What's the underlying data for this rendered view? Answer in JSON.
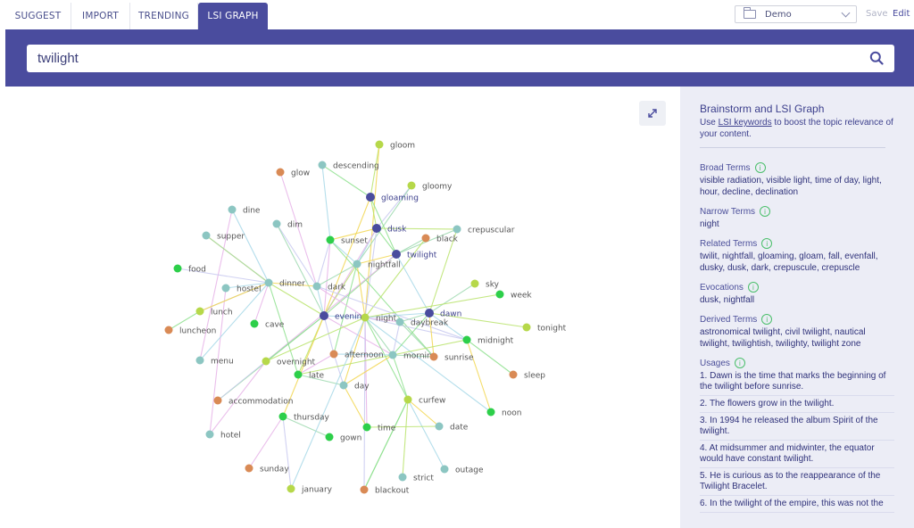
{
  "tabs": [
    {
      "label": "SUGGEST",
      "active": false
    },
    {
      "label": "IMPORT",
      "active": false
    },
    {
      "label": "TRENDING",
      "active": false
    },
    {
      "label": "LSI GRAPH",
      "active": true
    }
  ],
  "project_select": {
    "value": "Demo",
    "icon": "folder-icon"
  },
  "header_actions": {
    "save": "Save",
    "edit": "Edit"
  },
  "search": {
    "value": "twilight",
    "icon": "search-icon"
  },
  "colors": {
    "brand": "#4a4c9e",
    "node_dark": "#4a4c9e",
    "node_teal": "#8cc6c2",
    "node_green": "#2dcf4a",
    "node_lime": "#b6d84a",
    "node_orange": "#d98a55"
  },
  "graph": {
    "nodes": [
      {
        "id": "gloom",
        "label": "gloom",
        "color": "lime"
      },
      {
        "id": "descending",
        "label": "descending",
        "color": "teal"
      },
      {
        "id": "glow",
        "label": "glow",
        "color": "orange"
      },
      {
        "id": "gloomy",
        "label": "gloomy",
        "color": "lime"
      },
      {
        "id": "gloaming",
        "label": "gloaming",
        "color": "dark"
      },
      {
        "id": "dine",
        "label": "dine",
        "color": "teal"
      },
      {
        "id": "dim",
        "label": "dim",
        "color": "teal"
      },
      {
        "id": "dusk",
        "label": "dusk",
        "color": "dark"
      },
      {
        "id": "crepuscular",
        "label": "crepuscular",
        "color": "teal"
      },
      {
        "id": "supper",
        "label": "supper",
        "color": "teal"
      },
      {
        "id": "sunset",
        "label": "sunset",
        "color": "green"
      },
      {
        "id": "black",
        "label": "black",
        "color": "orange"
      },
      {
        "id": "twilight",
        "label": "twilight",
        "color": "dark"
      },
      {
        "id": "food",
        "label": "food",
        "color": "green"
      },
      {
        "id": "nightfall",
        "label": "nightfall",
        "color": "teal"
      },
      {
        "id": "hostel",
        "label": "hostel",
        "color": "teal"
      },
      {
        "id": "dinner",
        "label": "dinner",
        "color": "teal"
      },
      {
        "id": "dark",
        "label": "dark",
        "color": "teal"
      },
      {
        "id": "sky",
        "label": "sky",
        "color": "lime"
      },
      {
        "id": "week",
        "label": "week",
        "color": "green"
      },
      {
        "id": "lunch",
        "label": "lunch",
        "color": "lime"
      },
      {
        "id": "evening",
        "label": "evening",
        "color": "dark"
      },
      {
        "id": "night",
        "label": "night",
        "color": "lime"
      },
      {
        "id": "dawn",
        "label": "dawn",
        "color": "dark"
      },
      {
        "id": "cave",
        "label": "cave",
        "color": "green"
      },
      {
        "id": "daybreak",
        "label": "daybreak",
        "color": "teal"
      },
      {
        "id": "luncheon",
        "label": "luncheon",
        "color": "orange"
      },
      {
        "id": "tonight",
        "label": "tonight",
        "color": "lime"
      },
      {
        "id": "midnight",
        "label": "midnight",
        "color": "green"
      },
      {
        "id": "afternoon",
        "label": "afternoon",
        "color": "orange"
      },
      {
        "id": "morning",
        "label": "morning",
        "color": "teal"
      },
      {
        "id": "sunrise",
        "label": "sunrise",
        "color": "orange"
      },
      {
        "id": "menu",
        "label": "menu",
        "color": "teal"
      },
      {
        "id": "overnight",
        "label": "overnight",
        "color": "lime"
      },
      {
        "id": "late",
        "label": "late",
        "color": "green"
      },
      {
        "id": "sleep",
        "label": "sleep",
        "color": "orange"
      },
      {
        "id": "day",
        "label": "day",
        "color": "teal"
      },
      {
        "id": "accommodation",
        "label": "accommodation",
        "color": "orange"
      },
      {
        "id": "curfew",
        "label": "curfew",
        "color": "lime"
      },
      {
        "id": "thursday",
        "label": "thursday",
        "color": "green"
      },
      {
        "id": "noon",
        "label": "noon",
        "color": "green"
      },
      {
        "id": "time",
        "label": "time",
        "color": "green"
      },
      {
        "id": "date",
        "label": "date",
        "color": "teal"
      },
      {
        "id": "hotel",
        "label": "hotel",
        "color": "teal"
      },
      {
        "id": "gown",
        "label": "gown",
        "color": "green"
      },
      {
        "id": "sunday",
        "label": "sunday",
        "color": "orange"
      },
      {
        "id": "outage",
        "label": "outage",
        "color": "teal"
      },
      {
        "id": "strict",
        "label": "strict",
        "color": "teal"
      },
      {
        "id": "january",
        "label": "january",
        "color": "lime"
      },
      {
        "id": "blackout",
        "label": "blackout",
        "color": "orange"
      }
    ],
    "edges": [
      [
        "gloom",
        "gloaming"
      ],
      [
        "gloom",
        "night"
      ],
      [
        "descending",
        "gloaming"
      ],
      [
        "descending",
        "sunset"
      ],
      [
        "glow",
        "dark"
      ],
      [
        "gloomy",
        "dusk"
      ],
      [
        "gloomy",
        "nightfall"
      ],
      [
        "gloaming",
        "dusk"
      ],
      [
        "gloaming",
        "evening"
      ],
      [
        "gloaming",
        "twilight"
      ],
      [
        "dine",
        "dinner"
      ],
      [
        "dine",
        "menu"
      ],
      [
        "dim",
        "dark"
      ],
      [
        "dim",
        "evening"
      ],
      [
        "dusk",
        "crepuscular"
      ],
      [
        "dusk",
        "sunset"
      ],
      [
        "dusk",
        "twilight"
      ],
      [
        "dusk",
        "nightfall"
      ],
      [
        "dusk",
        "evening"
      ],
      [
        "dusk",
        "night"
      ],
      [
        "crepuscular",
        "twilight"
      ],
      [
        "crepuscular",
        "dawn"
      ],
      [
        "supper",
        "dinner"
      ],
      [
        "sunset",
        "sunrise"
      ],
      [
        "sunset",
        "nightfall"
      ],
      [
        "sunset",
        "evening"
      ],
      [
        "sunset",
        "dark"
      ],
      [
        "black",
        "twilight"
      ],
      [
        "black",
        "night"
      ],
      [
        "twilight",
        "nightfall"
      ],
      [
        "twilight",
        "evening"
      ],
      [
        "twilight",
        "dawn"
      ],
      [
        "twilight",
        "overnight"
      ],
      [
        "food",
        "dinner"
      ],
      [
        "nightfall",
        "dark"
      ],
      [
        "nightfall",
        "evening"
      ],
      [
        "nightfall",
        "night"
      ],
      [
        "nightfall",
        "afternoon"
      ],
      [
        "hostel",
        "dinner"
      ],
      [
        "hostel",
        "hotel"
      ],
      [
        "dinner",
        "lunch"
      ],
      [
        "dinner",
        "supper"
      ],
      [
        "dinner",
        "evening"
      ],
      [
        "dinner",
        "dark"
      ],
      [
        "dinner",
        "late"
      ],
      [
        "dark",
        "evening"
      ],
      [
        "dark",
        "night"
      ],
      [
        "dark",
        "midnight"
      ],
      [
        "sky",
        "dawn"
      ],
      [
        "week",
        "night"
      ],
      [
        "lunch",
        "dinner"
      ],
      [
        "lunch",
        "luncheon"
      ],
      [
        "evening",
        "night"
      ],
      [
        "evening",
        "morning"
      ],
      [
        "evening",
        "afternoon"
      ],
      [
        "evening",
        "overnight"
      ],
      [
        "evening",
        "late"
      ],
      [
        "evening",
        "thursday"
      ],
      [
        "evening",
        "accommodation"
      ],
      [
        "night",
        "dawn"
      ],
      [
        "night",
        "daybreak"
      ],
      [
        "night",
        "midnight"
      ],
      [
        "night",
        "morning"
      ],
      [
        "night",
        "overnight"
      ],
      [
        "night",
        "day"
      ],
      [
        "night",
        "curfew"
      ],
      [
        "night",
        "noon"
      ],
      [
        "night",
        "time"
      ],
      [
        "night",
        "blackout"
      ],
      [
        "dawn",
        "daybreak"
      ],
      [
        "dawn",
        "tonight"
      ],
      [
        "dawn",
        "sunrise"
      ],
      [
        "dawn",
        "morning"
      ],
      [
        "dawn",
        "midnight"
      ],
      [
        "cave",
        "dinner"
      ],
      [
        "daybreak",
        "morning"
      ],
      [
        "daybreak",
        "sunrise"
      ],
      [
        "midnight",
        "morning"
      ],
      [
        "midnight",
        "noon"
      ],
      [
        "midnight",
        "sleep"
      ],
      [
        "afternoon",
        "morning"
      ],
      [
        "afternoon",
        "late"
      ],
      [
        "afternoon",
        "day"
      ],
      [
        "morning",
        "sunrise"
      ],
      [
        "morning",
        "late"
      ],
      [
        "morning",
        "day"
      ],
      [
        "morning",
        "curfew"
      ],
      [
        "menu",
        "dinner"
      ],
      [
        "overnight",
        "hotel"
      ],
      [
        "overnight",
        "accommodation"
      ],
      [
        "late",
        "day"
      ],
      [
        "curfew",
        "strict"
      ],
      [
        "curfew",
        "date"
      ],
      [
        "curfew",
        "blackout"
      ],
      [
        "curfew",
        "outage"
      ],
      [
        "thursday",
        "sunday"
      ],
      [
        "thursday",
        "january"
      ],
      [
        "thursday",
        "gown"
      ],
      [
        "time",
        "date"
      ],
      [
        "time",
        "day"
      ],
      [
        "blackout",
        "curfew"
      ],
      [
        "january",
        "night"
      ]
    ]
  },
  "sidebar": {
    "title": "Brainstorm and LSI Graph",
    "intro_prefix": "Use ",
    "intro_link": "LSI keywords",
    "intro_suffix": " to boost the topic relevance of your content.",
    "sections": [
      {
        "heading": "Broad Terms",
        "text": "visible radiation, visible light, time of day, light, hour, decline, declination"
      },
      {
        "heading": "Narrow Terms",
        "text": "night"
      },
      {
        "heading": "Related Terms",
        "text": "twilit, nightfall, gloaming, gloam, fall, evenfall, dusky, dusk, dark, crepuscule, crepuscle"
      },
      {
        "heading": "Evocations",
        "text": "dusk, nightfall"
      },
      {
        "heading": "Derived Terms",
        "text": "astronomical twilight, civil twilight, nautical twilight, twilightish, twilighty, twilight zone"
      }
    ],
    "usages_heading": "Usages",
    "usages": [
      "1. Dawn is the time that marks the beginning of the twilight before sunrise.",
      "2. The flowers grow in the twilight.",
      "3. In 1994 he released the album Spirit of the twilight.",
      "4. At midsummer and midwinter, the equator would have constant twilight.",
      "5. He is curious as to the reappearance of the Twilight Bracelet.",
      "6. In the twilight of the empire, this was not the"
    ]
  }
}
